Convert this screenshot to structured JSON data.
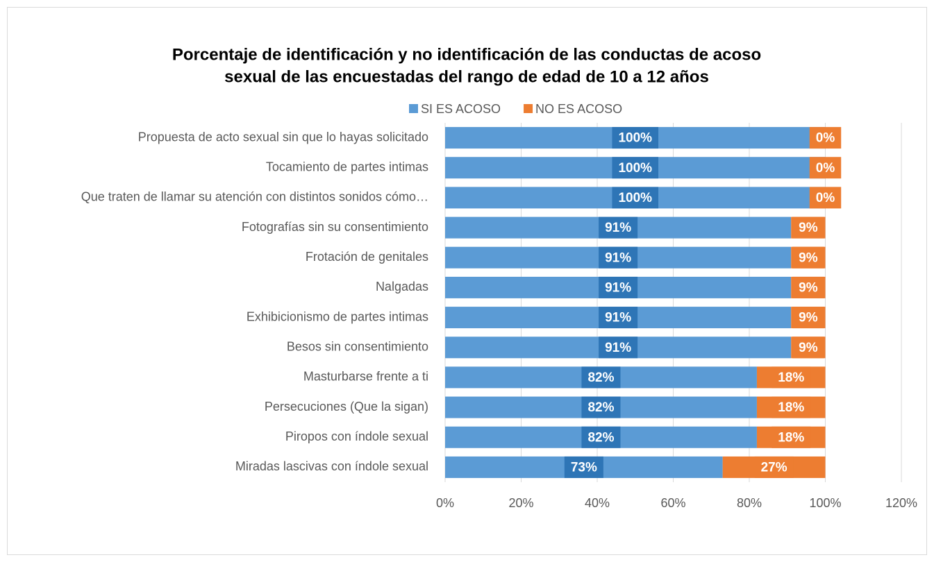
{
  "chart_data": {
    "type": "stacked_barh",
    "title": [
      "Porcentaje de identificación y no identificación de las conductas de acoso",
      "sexual de las encuestadas del rango de edad de 10 a 12 años"
    ],
    "categories": [
      "Propuesta de acto sexual sin que lo hayas solicitado",
      "Tocamiento de partes intimas",
      "Que traten de llamar su atención con distintos sonidos cómo…",
      "Fotografías sin su consentimiento",
      "Frotación de genitales",
      "Nalgadas",
      "Exhibicionismo de partes intimas",
      "Besos sin consentimiento",
      "Masturbarse frente a ti",
      "Persecuciones (Que la sigan)",
      "Piropos con índole sexual",
      "Miradas lascivas con índole sexual"
    ],
    "series": [
      {
        "name": "SI ES ACOSO",
        "color": "#5b9bd5",
        "label_color": "#2e75b6",
        "values": [
          100,
          100,
          100,
          91,
          91,
          91,
          91,
          91,
          82,
          82,
          82,
          73
        ],
        "value_labels": [
          "100%",
          "100%",
          "100%",
          "91%",
          "91%",
          "91%",
          "91%",
          "91%",
          "82%",
          "82%",
          "82%",
          "73%"
        ]
      },
      {
        "name": "NO ES ACOSO",
        "color": "#ed7d31",
        "label_color": "#ed7d31",
        "values": [
          0,
          0,
          0,
          9,
          9,
          9,
          9,
          9,
          18,
          18,
          18,
          27
        ],
        "value_labels": [
          "0%",
          "0%",
          "0%",
          "9%",
          "9%",
          "9%",
          "9%",
          "9%",
          "18%",
          "18%",
          "18%",
          "27%"
        ]
      }
    ],
    "xlim": [
      0,
      120
    ],
    "xticks": [
      {
        "value": 0,
        "label": "0%"
      },
      {
        "value": 20,
        "label": "20%"
      },
      {
        "value": 40,
        "label": "40%"
      },
      {
        "value": 60,
        "label": "60%"
      },
      {
        "value": 80,
        "label": "80%"
      },
      {
        "value": 100,
        "label": "100%"
      },
      {
        "value": 120,
        "label": "120%"
      }
    ],
    "grid": true,
    "legend": "top"
  }
}
